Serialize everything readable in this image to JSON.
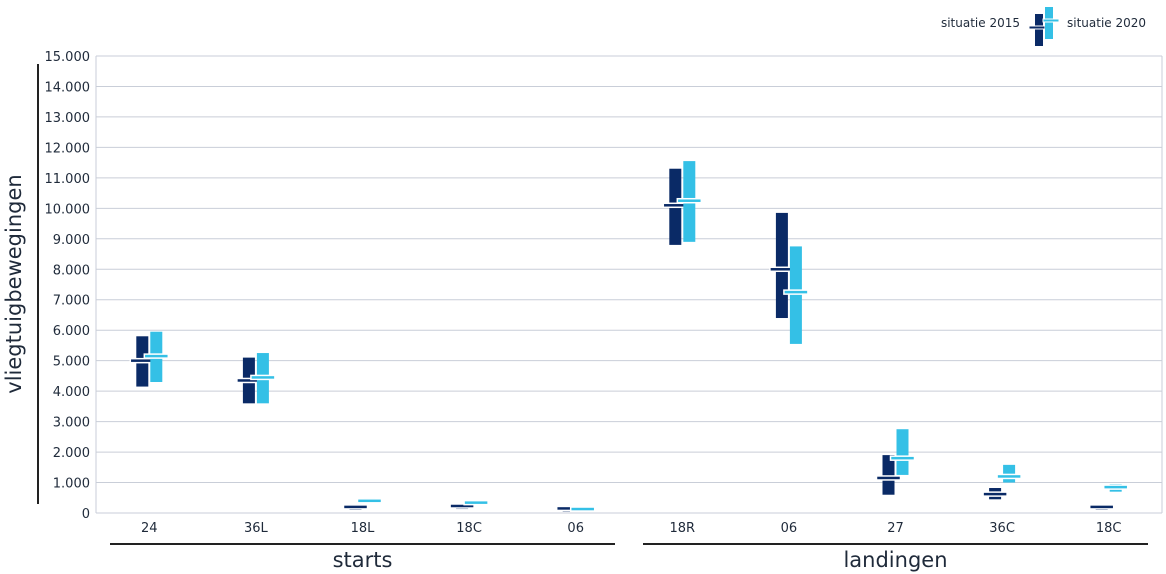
{
  "chart_data": {
    "type": "range",
    "ylabel": "vliegtuigbewegingen",
    "ylim": [
      0,
      15000
    ],
    "yticks": [
      "0",
      "1.000",
      "2.000",
      "3.000",
      "4.000",
      "5.000",
      "6.000",
      "7.000",
      "8.000",
      "9.000",
      "10.000",
      "11.000",
      "12.000",
      "13.000",
      "14.000",
      "15.000"
    ],
    "grid": true,
    "legend_position": "top-right",
    "colors": {
      "situatie 2015": "#0a2a66",
      "situatie 2020": "#34c0e6"
    },
    "groups": [
      {
        "label": "starts",
        "categories": [
          "24",
          "36L",
          "18L",
          "18C",
          "06"
        ]
      },
      {
        "label": "landingen",
        "categories": [
          "18R",
          "06",
          "27",
          "36C",
          "18C"
        ]
      }
    ],
    "categories": [
      "24",
      "36L",
      "18L",
      "18C",
      "06",
      "18R",
      "06",
      "27",
      "36C",
      "18C"
    ],
    "series": [
      {
        "name": "situatie 2015",
        "color": "#0a2a66",
        "values": [
          {
            "low": 4150,
            "mid": 5000,
            "high": 5800
          },
          {
            "low": 3600,
            "mid": 4350,
            "high": 5100
          },
          {
            "low": 100,
            "mid": 200,
            "high": 280
          },
          {
            "low": 130,
            "mid": 230,
            "high": 300
          },
          {
            "low": 50,
            "mid": 150,
            "high": 230
          },
          {
            "low": 8800,
            "mid": 10100,
            "high": 11300
          },
          {
            "low": 6400,
            "mid": 8000,
            "high": 9850
          },
          {
            "low": 600,
            "mid": 1150,
            "high": 1900
          },
          {
            "low": 450,
            "mid": 620,
            "high": 820
          },
          {
            "low": 100,
            "mid": 200,
            "high": 270
          }
        ]
      },
      {
        "name": "situatie 2020",
        "color": "#34c0e6",
        "values": [
          {
            "low": 4300,
            "mid": 5150,
            "high": 5950
          },
          {
            "low": 3600,
            "mid": 4450,
            "high": 5250
          },
          {
            "low": 320,
            "mid": 400,
            "high": 480
          },
          {
            "low": 270,
            "mid": 340,
            "high": 400
          },
          {
            "low": 50,
            "mid": 130,
            "high": 180
          },
          {
            "low": 8900,
            "mid": 10250,
            "high": 11550
          },
          {
            "low": 5550,
            "mid": 7250,
            "high": 8750
          },
          {
            "low": 1250,
            "mid": 1800,
            "high": 2750
          },
          {
            "low": 1000,
            "mid": 1200,
            "high": 1580
          },
          {
            "low": 700,
            "mid": 850,
            "high": 950
          }
        ]
      }
    ]
  }
}
